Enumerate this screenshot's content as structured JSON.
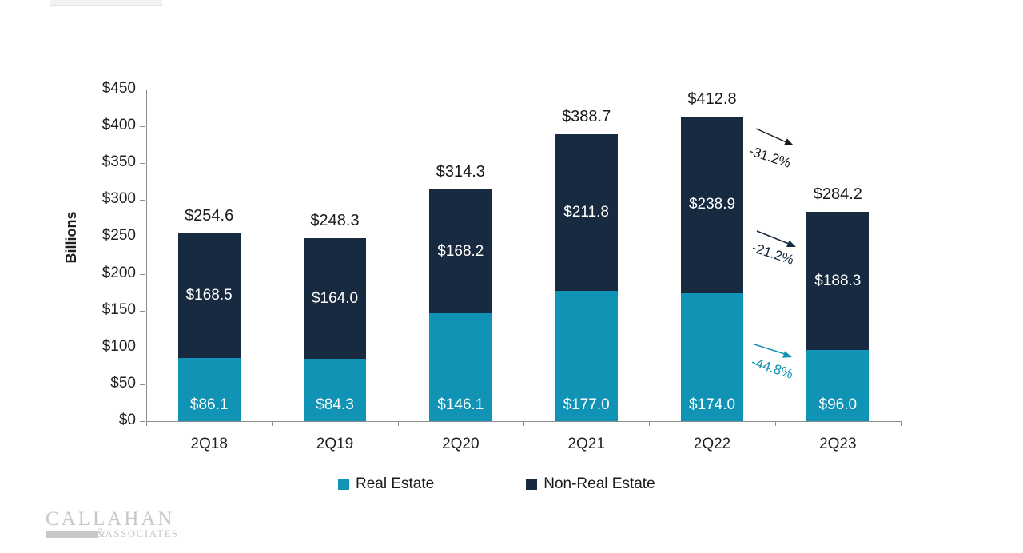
{
  "chart_data": {
    "type": "bar",
    "subtype": "stacked",
    "title": "",
    "ylabel": "Billions",
    "ylim": [
      0,
      450
    ],
    "y_tick_step": 50,
    "y_tick_labels": [
      "$0",
      "$50",
      "$100",
      "$150",
      "$200",
      "$250",
      "$300",
      "$350",
      "$400",
      "$450"
    ],
    "categories": [
      "2Q18",
      "2Q19",
      "2Q20",
      "2Q21",
      "2Q22",
      "2Q23"
    ],
    "series": [
      {
        "name": "Real Estate",
        "color": "#1193B5",
        "values": [
          86.1,
          84.3,
          146.1,
          177.0,
          174.0,
          96.0
        ],
        "labels": [
          "$86.1",
          "$84.3",
          "$146.1",
          "$177.0",
          "$174.0",
          "$96.0"
        ]
      },
      {
        "name": "Non-Real Estate",
        "color": "#172A40",
        "values": [
          168.5,
          164.0,
          168.2,
          211.8,
          238.9,
          188.3
        ],
        "labels": [
          "$168.5",
          "$164.0",
          "$168.2",
          "$211.8",
          "$238.9",
          "$188.3"
        ]
      }
    ],
    "totals": [
      254.6,
      248.3,
      314.3,
      388.7,
      412.8,
      284.2
    ],
    "total_labels": [
      "$254.6",
      "$248.3",
      "$314.3",
      "$388.7",
      "$412.8",
      "$284.2"
    ],
    "grid": false,
    "legend_position": "bottom",
    "annotations": [
      {
        "text": "-31.2%",
        "color": "#1a1a1a",
        "refers_to": "total change 2Q22 to 2Q23"
      },
      {
        "text": "-21.2%",
        "color": "#172A40",
        "refers_to": "Non-Real Estate change 2Q22 to 2Q23"
      },
      {
        "text": "-44.8%",
        "color": "#1193B5",
        "refers_to": "Real Estate change 2Q22 to 2Q23"
      }
    ]
  },
  "legend": {
    "items": [
      {
        "label": "Real Estate",
        "color": "#1193B5"
      },
      {
        "label": "Non-Real Estate",
        "color": "#172A40"
      }
    ]
  },
  "logo": {
    "name": "CALLAHAN",
    "amp": "&",
    "suffix": "ASSOCIATES"
  }
}
